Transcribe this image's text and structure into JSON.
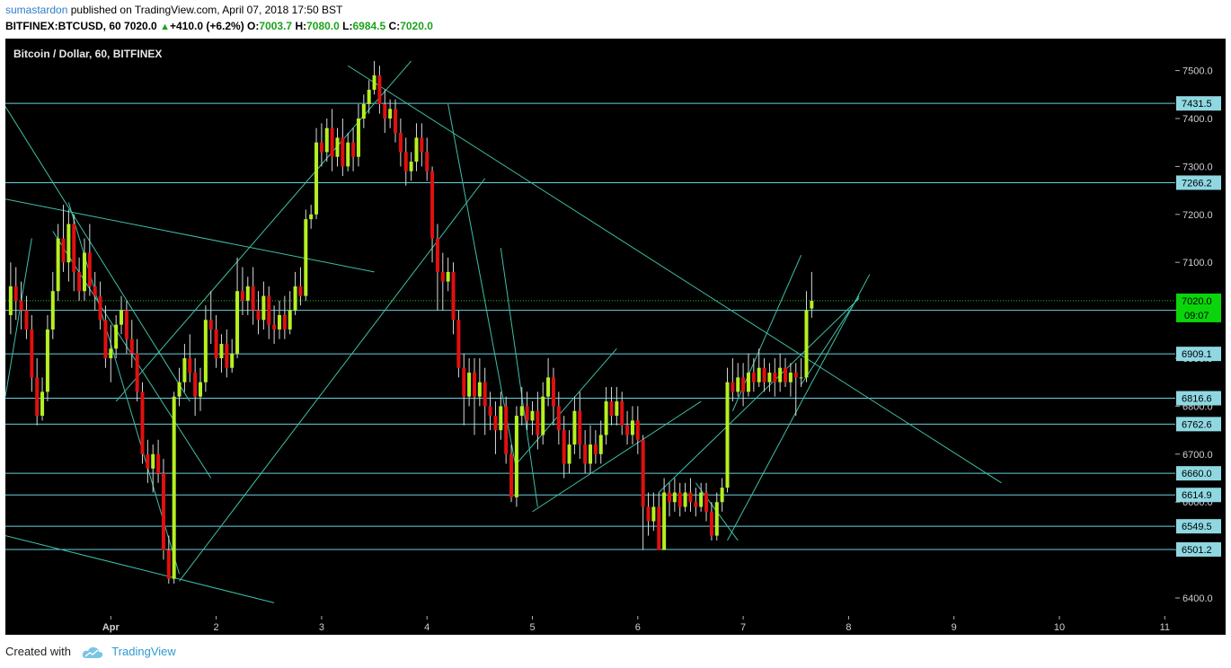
{
  "header": {
    "author": "sumastardon",
    "published_text": "published on TradingView.com, April 07, 2018 17:50 BST",
    "symbol": "BITFINEX:BTCUSD, 60",
    "last": "7020.0",
    "change": "+410.0 (+6.2%)",
    "open_label": "O:",
    "open": "7003.7",
    "high_label": "H:",
    "high": "7080.0",
    "low_label": "L:",
    "low": "6984.5",
    "close_label": "C:",
    "close": "7020.0"
  },
  "legend": "Bitcoin / Dollar, 60, BITFINEX",
  "footer": {
    "created_with": "Created with",
    "brand": "TradingView"
  },
  "colors": {
    "background": "#000000",
    "candle_up": "#b6f021",
    "candle_down": "#e01010",
    "trendline": "#3fbfa8",
    "level": "#6ad0dc",
    "price_tag": "#0bd40b"
  },
  "chart_data": {
    "type": "candlestick",
    "title": "Bitcoin / Dollar, 60, BITFINEX",
    "ylim": [
      6350,
      7550
    ],
    "y_ticks": [
      "6400.0",
      "6500.0",
      "6600.0",
      "6700.0",
      "6800.0",
      "6900.0",
      "7000.0",
      "7100.0",
      "7200.0",
      "7300.0",
      "7400.0",
      "7500.0"
    ],
    "x_ticks": [
      {
        "day": 1,
        "label": "Apr"
      },
      {
        "day": 2,
        "label": "2"
      },
      {
        "day": 3,
        "label": "3"
      },
      {
        "day": 4,
        "label": "4"
      },
      {
        "day": 5,
        "label": "5"
      },
      {
        "day": 6,
        "label": "6"
      },
      {
        "day": 7,
        "label": "7"
      },
      {
        "day": 8,
        "label": "8"
      },
      {
        "day": 9,
        "label": "9"
      },
      {
        "day": 10,
        "label": "10"
      },
      {
        "day": 11,
        "label": "11"
      }
    ],
    "xlim": [
      0.0,
      11.15
    ],
    "horizontal_levels": [
      {
        "value": 7431.5,
        "label": "7431.5"
      },
      {
        "value": 7266.2,
        "label": "7266.2"
      },
      {
        "value": 7000.0,
        "label": ""
      },
      {
        "value": 6909.1,
        "label": "6909.1"
      },
      {
        "value": 6816.6,
        "label": "6816.6"
      },
      {
        "value": 6762.6,
        "label": "6762.6"
      },
      {
        "value": 6660.0,
        "label": "6660.0"
      },
      {
        "value": 6614.9,
        "label": "6614.9"
      },
      {
        "value": 6549.5,
        "label": "6549.5"
      },
      {
        "value": 6501.2,
        "label": "6501.2"
      }
    ],
    "current_price": {
      "value": 7020.0,
      "label": "7020.0",
      "countdown": "09:07"
    },
    "trendlines": [
      {
        "from": [
          0.0,
          7232
        ],
        "to": [
          3.5,
          7080
        ]
      },
      {
        "from": [
          0.0,
          6530
        ],
        "to": [
          2.55,
          6390
        ]
      },
      {
        "from": [
          0.0,
          7425
        ],
        "to": [
          1.75,
          6810
        ]
      },
      {
        "from": [
          0.0,
          6820
        ],
        "to": [
          0.25,
          7150
        ]
      },
      {
        "from": [
          0.6,
          7225
        ],
        "to": [
          1.65,
          6450
        ]
      },
      {
        "from": [
          0.45,
          7165
        ],
        "to": [
          1.95,
          6650
        ]
      },
      {
        "from": [
          1.65,
          6435
        ],
        "to": [
          4.55,
          7275
        ]
      },
      {
        "from": [
          1.05,
          6810
        ],
        "to": [
          3.85,
          7520
        ]
      },
      {
        "from": [
          3.25,
          7510
        ],
        "to": [
          9.45,
          6640
        ]
      },
      {
        "from": [
          4.2,
          7430
        ],
        "to": [
          4.85,
          6665
        ]
      },
      {
        "from": [
          4.7,
          7130
        ],
        "to": [
          5.05,
          6590
        ]
      },
      {
        "from": [
          5.0,
          6580
        ],
        "to": [
          6.6,
          6810
        ]
      },
      {
        "from": [
          4.85,
          6680
        ],
        "to": [
          5.8,
          6920
        ]
      },
      {
        "from": [
          6.2,
          6620
        ],
        "to": [
          8.1,
          7025
        ]
      },
      {
        "from": [
          6.85,
          6520
        ],
        "to": [
          8.2,
          7075
        ]
      },
      {
        "from": [
          6.55,
          6640
        ],
        "to": [
          6.95,
          6520
        ]
      },
      {
        "from": [
          6.9,
          6790
        ],
        "to": [
          7.55,
          7115
        ]
      },
      {
        "from": [
          7.55,
          6845
        ],
        "to": [
          8.1,
          7030
        ]
      }
    ],
    "candles": [
      [
        0.05,
        6990,
        7050,
        7100,
        6950
      ],
      [
        0.1,
        7050,
        7020,
        7090,
        6980
      ],
      [
        0.15,
        7020,
        7000,
        7060,
        6960
      ],
      [
        0.2,
        7000,
        6960,
        7030,
        6940
      ],
      [
        0.25,
        6960,
        6860,
        6990,
        6830
      ],
      [
        0.3,
        6860,
        6780,
        6900,
        6760
      ],
      [
        0.35,
        6780,
        6830,
        6860,
        6770
      ],
      [
        0.4,
        6830,
        6960,
        6990,
        6810
      ],
      [
        0.45,
        6960,
        7040,
        7080,
        6940
      ],
      [
        0.5,
        7040,
        7150,
        7180,
        7020
      ],
      [
        0.55,
        7150,
        7100,
        7220,
        7080
      ],
      [
        0.6,
        7100,
        7180,
        7210,
        7060
      ],
      [
        0.65,
        7180,
        7080,
        7200,
        7040
      ],
      [
        0.7,
        7080,
        7040,
        7110,
        7020
      ],
      [
        0.75,
        7040,
        7120,
        7150,
        7020
      ],
      [
        0.8,
        7120,
        7050,
        7180,
        7030
      ],
      [
        0.85,
        7050,
        7030,
        7080,
        7000
      ],
      [
        0.9,
        7030,
        6980,
        7060,
        6960
      ],
      [
        0.95,
        6980,
        6900,
        7010,
        6880
      ],
      [
        1.0,
        6900,
        6920,
        6970,
        6850
      ],
      [
        1.05,
        6920,
        6970,
        6990,
        6900
      ],
      [
        1.1,
        6970,
        7000,
        7030,
        6950
      ],
      [
        1.15,
        7000,
        6940,
        7020,
        6910
      ],
      [
        1.2,
        6940,
        6910,
        6980,
        6880
      ],
      [
        1.25,
        6910,
        6830,
        6940,
        6810
      ],
      [
        1.3,
        6830,
        6700,
        6850,
        6680
      ],
      [
        1.35,
        6700,
        6670,
        6730,
        6640
      ],
      [
        1.4,
        6670,
        6700,
        6720,
        6620
      ],
      [
        1.45,
        6700,
        6660,
        6730,
        6640
      ],
      [
        1.5,
        6660,
        6500,
        6690,
        6480
      ],
      [
        1.55,
        6500,
        6440,
        6530,
        6430
      ],
      [
        1.6,
        6440,
        6820,
        6830,
        6430
      ],
      [
        1.65,
        6820,
        6850,
        6880,
        6800
      ],
      [
        1.7,
        6850,
        6900,
        6930,
        6830
      ],
      [
        1.75,
        6900,
        6870,
        6950,
        6850
      ],
      [
        1.8,
        6870,
        6820,
        6900,
        6780
      ],
      [
        1.85,
        6820,
        6850,
        6880,
        6790
      ],
      [
        1.9,
        6850,
        6980,
        7010,
        6830
      ],
      [
        1.95,
        6980,
        6960,
        7040,
        6930
      ],
      [
        2.0,
        6960,
        6900,
        6990,
        6880
      ],
      [
        2.05,
        6900,
        6930,
        6950,
        6870
      ],
      [
        2.1,
        6930,
        6880,
        6960,
        6860
      ],
      [
        2.15,
        6880,
        6910,
        6940,
        6870
      ],
      [
        2.2,
        6910,
        7040,
        7110,
        6900
      ],
      [
        2.25,
        7040,
        7020,
        7090,
        6990
      ],
      [
        2.3,
        7020,
        7050,
        7070,
        6990
      ],
      [
        2.35,
        7050,
        7000,
        7090,
        6970
      ],
      [
        2.4,
        7000,
        6980,
        7040,
        6950
      ],
      [
        2.45,
        6980,
        7030,
        7060,
        6960
      ],
      [
        2.5,
        7030,
        6970,
        7050,
        6940
      ],
      [
        2.55,
        6970,
        6960,
        7010,
        6930
      ],
      [
        2.6,
        6960,
        6990,
        7020,
        6940
      ],
      [
        2.65,
        6990,
        6960,
        7030,
        6940
      ],
      [
        2.7,
        6960,
        7000,
        7040,
        6950
      ],
      [
        2.75,
        7000,
        7050,
        7080,
        6990
      ],
      [
        2.8,
        7050,
        7030,
        7090,
        7010
      ],
      [
        2.85,
        7030,
        7190,
        7210,
        7020
      ],
      [
        2.9,
        7190,
        7200,
        7220,
        7170
      ],
      [
        2.95,
        7200,
        7350,
        7380,
        7190
      ],
      [
        3.0,
        7350,
        7330,
        7390,
        7300
      ],
      [
        3.05,
        7330,
        7380,
        7400,
        7310
      ],
      [
        3.1,
        7380,
        7320,
        7420,
        7290
      ],
      [
        3.15,
        7320,
        7360,
        7380,
        7300
      ],
      [
        3.2,
        7360,
        7300,
        7400,
        7280
      ],
      [
        3.25,
        7300,
        7350,
        7370,
        7290
      ],
      [
        3.3,
        7350,
        7320,
        7380,
        7290
      ],
      [
        3.35,
        7320,
        7400,
        7430,
        7300
      ],
      [
        3.4,
        7400,
        7430,
        7450,
        7380
      ],
      [
        3.45,
        7430,
        7460,
        7480,
        7410
      ],
      [
        3.5,
        7460,
        7490,
        7520,
        7450
      ],
      [
        3.55,
        7490,
        7430,
        7510,
        7410
      ],
      [
        3.6,
        7430,
        7400,
        7460,
        7370
      ],
      [
        3.65,
        7400,
        7420,
        7440,
        7380
      ],
      [
        3.7,
        7420,
        7370,
        7440,
        7350
      ],
      [
        3.75,
        7370,
        7330,
        7400,
        7300
      ],
      [
        3.8,
        7330,
        7290,
        7360,
        7260
      ],
      [
        3.85,
        7290,
        7310,
        7330,
        7270
      ],
      [
        3.9,
        7310,
        7360,
        7390,
        7290
      ],
      [
        3.95,
        7360,
        7330,
        7390,
        7300
      ],
      [
        4.0,
        7330,
        7290,
        7360,
        7270
      ],
      [
        4.05,
        7290,
        7150,
        7300,
        7100
      ],
      [
        4.1,
        7150,
        7080,
        7180,
        7000
      ],
      [
        4.15,
        7080,
        7060,
        7120,
        7000
      ],
      [
        4.2,
        7060,
        7080,
        7110,
        7040
      ],
      [
        4.25,
        7080,
        6980,
        7100,
        6950
      ],
      [
        4.3,
        6980,
        6880,
        7000,
        6860
      ],
      [
        4.35,
        6880,
        6820,
        6910,
        6760
      ],
      [
        4.4,
        6820,
        6870,
        6900,
        6800
      ],
      [
        4.45,
        6870,
        6820,
        6900,
        6740
      ],
      [
        4.5,
        6820,
        6850,
        6900,
        6800
      ],
      [
        4.55,
        6850,
        6800,
        6880,
        6740
      ],
      [
        4.6,
        6800,
        6780,
        6830,
        6750
      ],
      [
        4.65,
        6780,
        6750,
        6810,
        6700
      ],
      [
        4.7,
        6750,
        6800,
        6830,
        6730
      ],
      [
        4.75,
        6800,
        6700,
        6820,
        6680
      ],
      [
        4.8,
        6700,
        6610,
        6720,
        6600
      ],
      [
        4.85,
        6610,
        6780,
        6800,
        6590
      ],
      [
        4.9,
        6780,
        6800,
        6840,
        6760
      ],
      [
        4.95,
        6800,
        6770,
        6830,
        6750
      ],
      [
        5.0,
        6770,
        6790,
        6810,
        6740
      ],
      [
        5.05,
        6790,
        6740,
        6830,
        6710
      ],
      [
        5.1,
        6740,
        6820,
        6850,
        6720
      ],
      [
        5.15,
        6820,
        6860,
        6900,
        6800
      ],
      [
        5.2,
        6860,
        6800,
        6880,
        6760
      ],
      [
        5.25,
        6800,
        6750,
        6830,
        6720
      ],
      [
        5.3,
        6750,
        6680,
        6780,
        6650
      ],
      [
        5.35,
        6680,
        6720,
        6750,
        6660
      ],
      [
        5.4,
        6720,
        6790,
        6820,
        6700
      ],
      [
        5.45,
        6790,
        6720,
        6830,
        6690
      ],
      [
        5.5,
        6720,
        6680,
        6750,
        6660
      ],
      [
        5.55,
        6680,
        6720,
        6760,
        6660
      ],
      [
        5.6,
        6720,
        6700,
        6750,
        6680
      ],
      [
        5.65,
        6700,
        6740,
        6770,
        6680
      ],
      [
        5.7,
        6740,
        6810,
        6840,
        6720
      ],
      [
        5.75,
        6810,
        6780,
        6840,
        6760
      ],
      [
        5.8,
        6780,
        6810,
        6840,
        6760
      ],
      [
        5.85,
        6810,
        6760,
        6830,
        6740
      ],
      [
        5.9,
        6760,
        6740,
        6790,
        6720
      ],
      [
        5.95,
        6740,
        6770,
        6800,
        6720
      ],
      [
        6.0,
        6770,
        6730,
        6800,
        6700
      ],
      [
        6.05,
        6730,
        6590,
        6740,
        6500
      ],
      [
        6.1,
        6590,
        6560,
        6620,
        6530
      ],
      [
        6.15,
        6560,
        6590,
        6620,
        6540
      ],
      [
        6.2,
        6590,
        6500,
        6620,
        6500
      ],
      [
        6.25,
        6500,
        6620,
        6650,
        6500
      ],
      [
        6.3,
        6620,
        6600,
        6640,
        6570
      ],
      [
        6.35,
        6600,
        6620,
        6650,
        6580
      ],
      [
        6.4,
        6620,
        6590,
        6640,
        6570
      ],
      [
        6.45,
        6590,
        6620,
        6640,
        6580
      ],
      [
        6.5,
        6620,
        6600,
        6650,
        6580
      ],
      [
        6.55,
        6600,
        6590,
        6630,
        6570
      ],
      [
        6.6,
        6590,
        6620,
        6640,
        6580
      ],
      [
        6.65,
        6620,
        6580,
        6640,
        6560
      ],
      [
        6.7,
        6580,
        6530,
        6600,
        6520
      ],
      [
        6.75,
        6530,
        6600,
        6620,
        6520
      ],
      [
        6.8,
        6600,
        6630,
        6650,
        6580
      ],
      [
        6.85,
        6630,
        6850,
        6880,
        6620
      ],
      [
        6.9,
        6850,
        6830,
        6900,
        6810
      ],
      [
        6.95,
        6830,
        6860,
        6890,
        6820
      ],
      [
        7.0,
        6860,
        6830,
        6890,
        6800
      ],
      [
        7.05,
        6830,
        6870,
        6910,
        6820
      ],
      [
        7.1,
        6870,
        6850,
        6900,
        6830
      ],
      [
        7.15,
        6850,
        6880,
        6920,
        6840
      ],
      [
        7.2,
        6880,
        6850,
        6900,
        6830
      ],
      [
        7.25,
        6850,
        6870,
        6890,
        6830
      ],
      [
        7.3,
        6870,
        6850,
        6900,
        6820
      ],
      [
        7.35,
        6850,
        6880,
        6910,
        6830
      ],
      [
        7.4,
        6880,
        6850,
        6900,
        6840
      ],
      [
        7.45,
        6850,
        6870,
        6890,
        6820
      ],
      [
        7.5,
        6870,
        6860,
        6890,
        6780
      ],
      [
        7.55,
        6860,
        6860,
        6900,
        6840
      ],
      [
        7.6,
        6860,
        7000,
        7040,
        6850
      ],
      [
        7.65,
        7003.7,
        7020,
        7080,
        6984.5
      ]
    ]
  }
}
